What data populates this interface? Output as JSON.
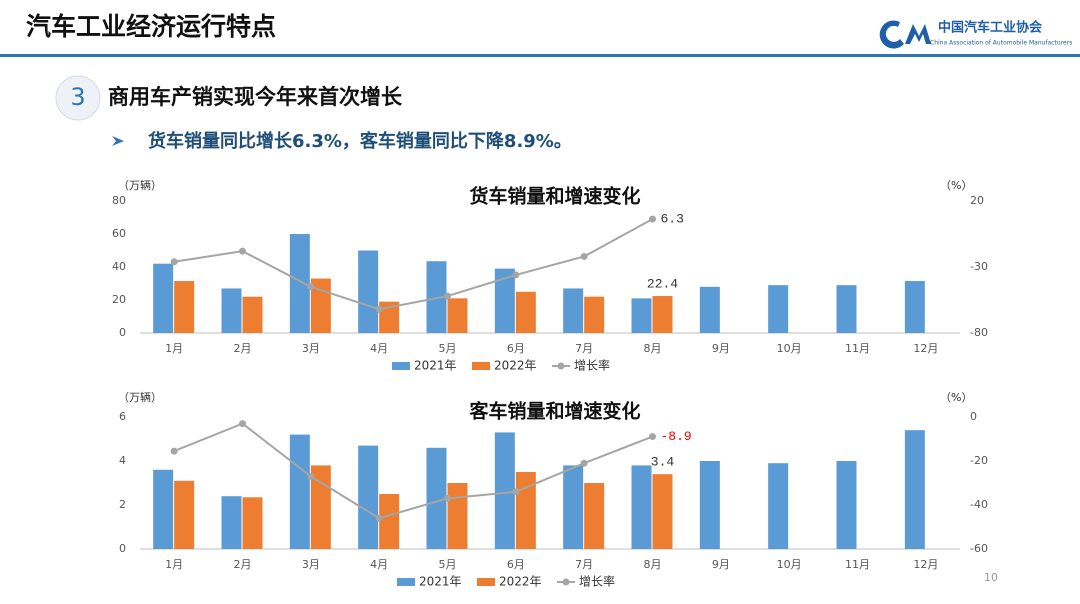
{
  "header": {
    "title": "汽车工业经济运行特点",
    "logo_name": "中国汽车工业协会",
    "logo_subtitle": "China Association of Automobile Manufacturers"
  },
  "section": {
    "number": "3",
    "title": "商用车产销实现今年来首次增长"
  },
  "bullet": "货车销量同比增长6.3%，客车销量同比下降8.9%。",
  "page_number": "10",
  "chart_data": [
    {
      "type": "bar",
      "title": "货车销量和增速变化",
      "y_label": "（万辆）",
      "y2_label": "（%）",
      "legend": "bottom",
      "categories": [
        "1月",
        "2月",
        "3月",
        "4月",
        "5月",
        "6月",
        "7月",
        "8月",
        "9月",
        "10月",
        "11月",
        "12月"
      ],
      "series": [
        {
          "name": "2021年",
          "color": "#5b9bd5",
          "values": [
            42,
            27,
            60,
            50,
            43.5,
            39,
            27,
            21,
            28,
            29,
            29,
            31.5
          ]
        },
        {
          "name": "2022年",
          "color": "#ed7d31",
          "values": [
            31.5,
            22,
            33,
            19,
            21,
            25,
            22,
            22.4,
            null,
            null,
            null,
            null
          ]
        },
        {
          "name": "增长率",
          "type": "line",
          "axis": "y2",
          "color": "#a5a5a5",
          "label_color": "#333333",
          "values": [
            -26,
            -18,
            -45,
            -62,
            -52,
            -36,
            -22,
            6.3,
            null,
            null,
            null,
            null
          ]
        }
      ],
      "ylim": [
        0,
        80
      ],
      "yticks": [
        0,
        20,
        40,
        60,
        80
      ],
      "y2lim": [
        -80,
        20
      ],
      "y2ticks": [
        -80,
        -30,
        20
      ]
    },
    {
      "type": "bar",
      "title": "客车销量和增速变化",
      "y_label": "（万辆）",
      "y2_label": "（%）",
      "legend": "bottom",
      "categories": [
        "1月",
        "2月",
        "3月",
        "4月",
        "5月",
        "6月",
        "7月",
        "8月",
        "9月",
        "10月",
        "11月",
        "12月"
      ],
      "series": [
        {
          "name": "2021年",
          "color": "#5b9bd5",
          "values": [
            3.6,
            2.4,
            5.2,
            4.7,
            4.6,
            5.3,
            3.8,
            3.8,
            4.0,
            3.9,
            4.0,
            5.4
          ]
        },
        {
          "name": "2022年",
          "color": "#ed7d31",
          "values": [
            3.1,
            2.35,
            3.8,
            2.5,
            3.0,
            3.5,
            3.0,
            3.4,
            null,
            null,
            null,
            null
          ]
        },
        {
          "name": "增长率",
          "type": "line",
          "axis": "y2",
          "color": "#a5a5a5",
          "label_color": "#ff0000",
          "values": [
            -15.5,
            -3,
            -27,
            -46,
            -37,
            -34,
            -21,
            -8.9,
            null,
            null,
            null,
            null
          ]
        }
      ],
      "ylim": [
        0,
        6
      ],
      "yticks": [
        0,
        2,
        4,
        6
      ],
      "y2lim": [
        -60,
        0
      ],
      "y2ticks": [
        -60,
        -40,
        -20,
        0
      ]
    }
  ]
}
